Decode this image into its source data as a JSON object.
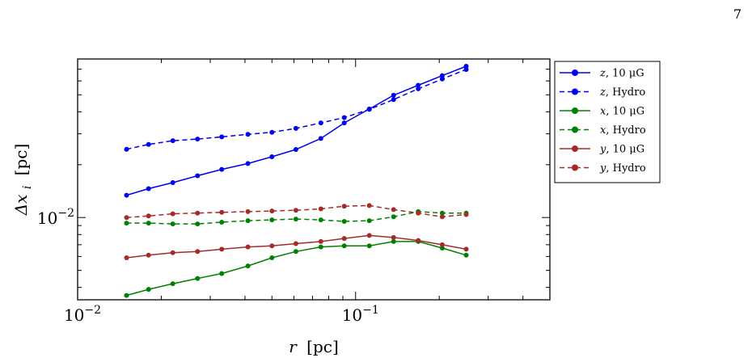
{
  "page": {
    "number": "7"
  },
  "chart_data": {
    "type": "line",
    "xscale": "log",
    "yscale": "log",
    "xlim": [
      0.01,
      0.5
    ],
    "ylim": [
      0.0034,
      0.08
    ],
    "xlabel": {
      "main": "r",
      "unit": "[pc]"
    },
    "ylabel": {
      "main": "Δx",
      "sub": "i",
      "unit": "[pc]"
    },
    "xticks": [
      {
        "value": 0.01,
        "base": "10",
        "exp": "−2"
      },
      {
        "value": 0.1,
        "base": "10",
        "exp": "−1"
      }
    ],
    "yticks": [
      {
        "value": 0.01,
        "base": "10",
        "exp": "−2"
      }
    ],
    "x": [
      0.015,
      0.018,
      0.022,
      0.027,
      0.033,
      0.041,
      0.05,
      0.061,
      0.075,
      0.091,
      0.112,
      0.137,
      0.168,
      0.205,
      0.25
    ],
    "series": [
      {
        "name": "z, 10 μG",
        "color": "#0000ee",
        "style": "solid",
        "values": [
          0.0134,
          0.0146,
          0.0158,
          0.0173,
          0.0188,
          0.0203,
          0.0222,
          0.0244,
          0.0282,
          0.0346,
          0.0415,
          0.0497,
          0.0567,
          0.0643,
          0.0727
        ]
      },
      {
        "name": "z, Hydro",
        "color": "#0000ee",
        "style": "dashed",
        "values": [
          0.0245,
          0.0261,
          0.0274,
          0.028,
          0.0288,
          0.0298,
          0.0306,
          0.0322,
          0.0346,
          0.0371,
          0.0413,
          0.047,
          0.0541,
          0.0615,
          0.0697
        ]
      },
      {
        "name": "x, 10 μG",
        "color": "#008000",
        "style": "solid",
        "values": [
          0.0036,
          0.0039,
          0.0042,
          0.0045,
          0.0048,
          0.0053,
          0.0059,
          0.0064,
          0.0068,
          0.0069,
          0.0069,
          0.0073,
          0.0073,
          0.0067,
          0.0061
        ]
      },
      {
        "name": "x, Hydro",
        "color": "#008000",
        "style": "dashed",
        "values": [
          0.0093,
          0.0093,
          0.0092,
          0.0092,
          0.0094,
          0.0096,
          0.0097,
          0.0098,
          0.0097,
          0.0095,
          0.0096,
          0.0101,
          0.0108,
          0.0106,
          0.0106
        ]
      },
      {
        "name": "y, 10 μG",
        "color": "#a52a2a",
        "style": "solid",
        "values": [
          0.0059,
          0.0061,
          0.0063,
          0.0064,
          0.0066,
          0.0068,
          0.0069,
          0.0071,
          0.0073,
          0.0076,
          0.0079,
          0.0077,
          0.0074,
          0.007,
          0.0066
        ]
      },
      {
        "name": "y, Hydro",
        "color": "#a52a2a",
        "style": "dashed",
        "values": [
          0.01,
          0.0102,
          0.0105,
          0.0106,
          0.0107,
          0.0108,
          0.0109,
          0.011,
          0.0112,
          0.0116,
          0.0117,
          0.0111,
          0.0106,
          0.0101,
          0.0104
        ]
      }
    ],
    "legend": {
      "position": "outside-right",
      "entries": [
        {
          "var": "z",
          "text": ", 10 μG"
        },
        {
          "var": "z",
          "text": ", Hydro"
        },
        {
          "var": "x",
          "text": ", 10 μG"
        },
        {
          "var": "x",
          "text": ", Hydro"
        },
        {
          "var": "y",
          "text": ", 10 μG"
        },
        {
          "var": "y",
          "text": ", Hydro"
        }
      ]
    },
    "grid": false
  }
}
